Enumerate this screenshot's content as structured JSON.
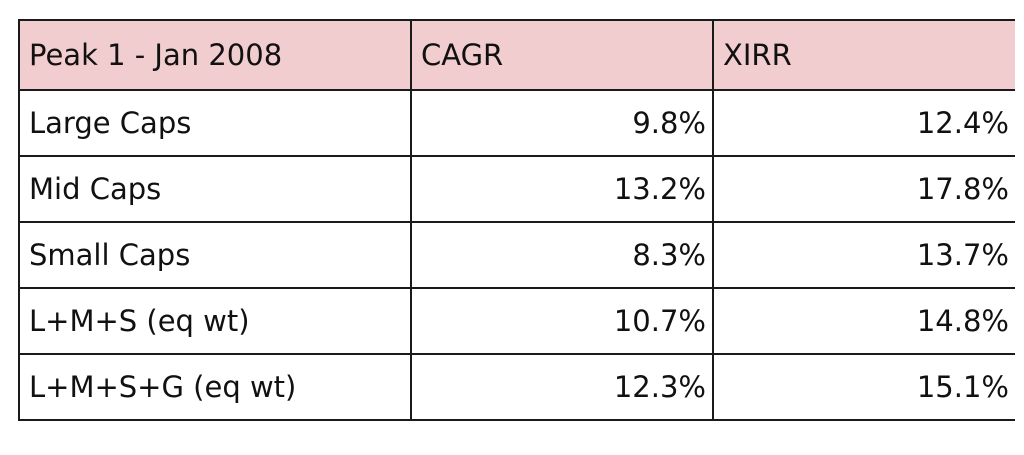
{
  "table": {
    "headers": [
      "Peak 1 - Jan 2008",
      "CAGR",
      "XIRR"
    ],
    "rows": [
      [
        "Large Caps",
        "9.8%",
        "12.4%"
      ],
      [
        "Mid Caps",
        "13.2%",
        "17.8%"
      ],
      [
        "Small Caps",
        "8.3%",
        "13.7%"
      ],
      [
        "L+M+S (eq wt)",
        "10.7%",
        "14.8%"
      ],
      [
        "L+M+S+G (eq wt)",
        "12.3%",
        "15.1%"
      ]
    ]
  },
  "colors": {
    "header_background": "#f2cdcf",
    "border": "#1a1a1a"
  }
}
